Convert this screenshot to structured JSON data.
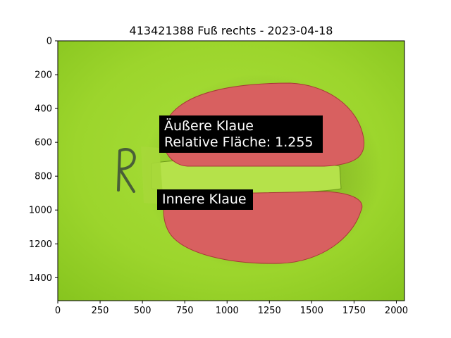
{
  "chart_data": {
    "type": "image",
    "title": "413421388 Fuß rechts - 2023-04-18",
    "xlim": [
      0,
      2048
    ],
    "ylim": [
      1536,
      0
    ],
    "x_ticks": [
      0,
      250,
      500,
      750,
      1000,
      1250,
      1500,
      1750,
      2000
    ],
    "y_ticks": [
      0,
      200,
      400,
      600,
      800,
      1000,
      1200,
      1400
    ],
    "grid": false,
    "annotations": [
      {
        "lines": [
          "Äußere Klaue",
          "Relative Fläche: 1.255"
        ],
        "x": 630,
        "y": 640
      },
      {
        "lines": [
          "Innere Klaue"
        ],
        "x": 615,
        "y": 990
      }
    ],
    "colors": {
      "background": "#9bd62e",
      "claw_region": "#d86060",
      "label_box": "#000000"
    }
  }
}
